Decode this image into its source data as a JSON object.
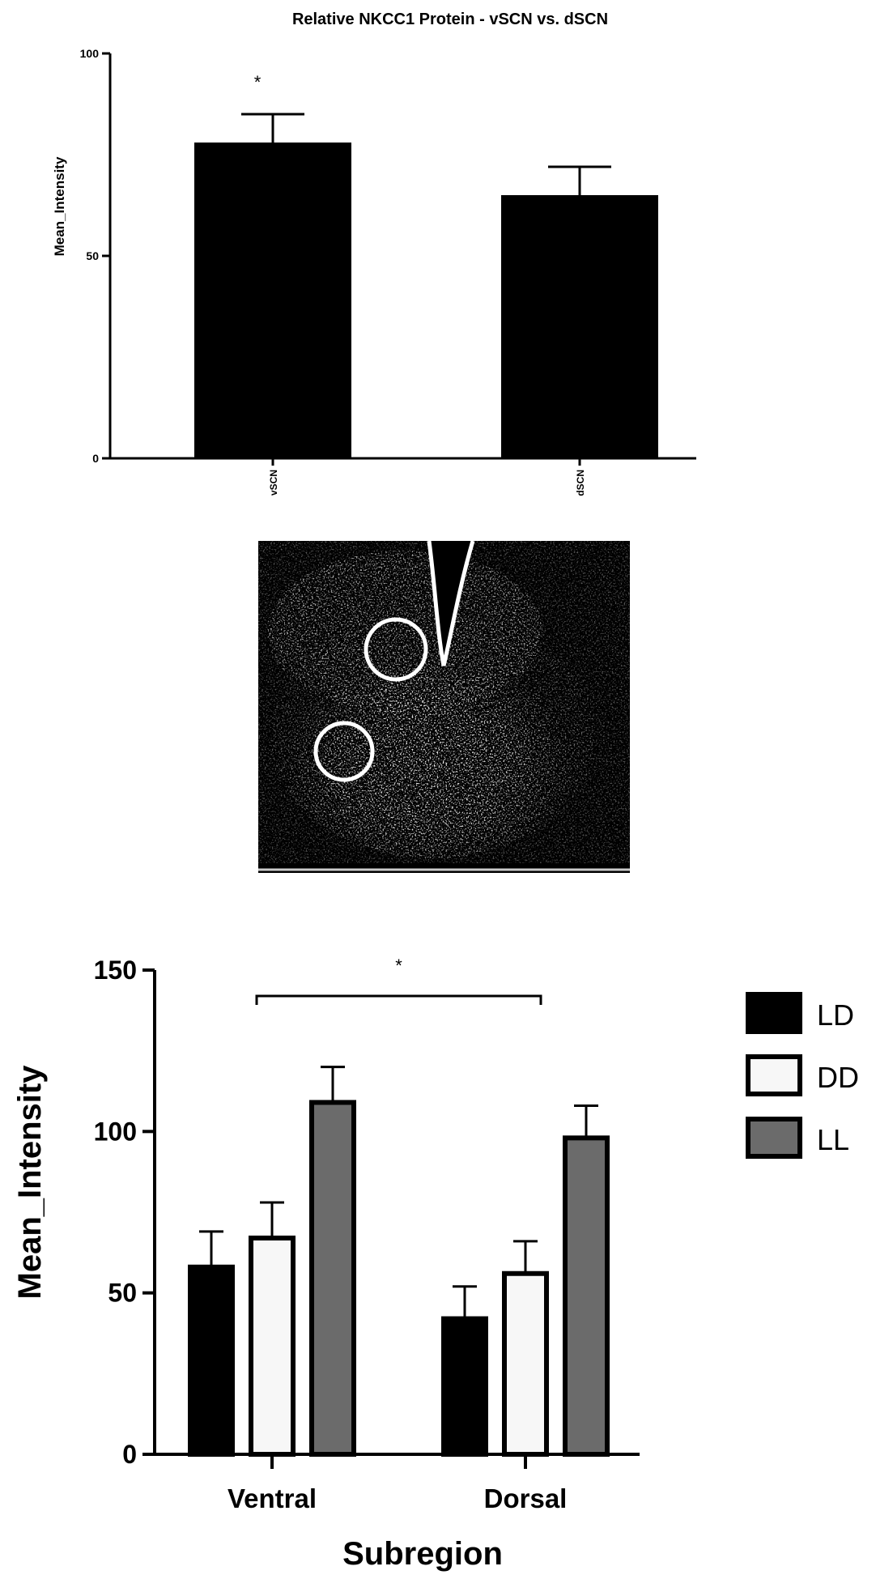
{
  "chart_data": [
    {
      "type": "bar",
      "title": "Relative NKCC1 Protein - vSCN vs. dSCN",
      "xlabel": "",
      "ylabel": "Mean_Intensity",
      "ylim": [
        0,
        100
      ],
      "yticks": [
        "0",
        "50",
        "100"
      ],
      "categories": [
        "vSCN",
        "dSCN"
      ],
      "values": [
        78,
        65
      ],
      "errors": [
        7,
        7
      ],
      "significance": "*",
      "bar_color": "#000000"
    },
    {
      "type": "bar",
      "title": "",
      "xlabel": "Subregion",
      "ylabel": "Mean_Intensity",
      "ylim": [
        0,
        150
      ],
      "yticks": [
        "0",
        "50",
        "100",
        "150"
      ],
      "categories": [
        "Ventral",
        "Dorsal"
      ],
      "series": [
        {
          "name": "LD",
          "values": [
            58,
            42
          ],
          "errors": [
            11,
            10
          ],
          "color": "#000000"
        },
        {
          "name": "DD",
          "values": [
            67,
            56
          ],
          "errors": [
            11,
            10
          ],
          "color": "#f7f7f7"
        },
        {
          "name": "LL",
          "values": [
            109,
            98
          ],
          "errors": [
            11,
            10
          ],
          "color": "#6b6b6b"
        }
      ],
      "significance": "*",
      "legend_position": "right"
    }
  ],
  "micrograph": {
    "description_icon": "fluorescence-micrograph",
    "roi_markers": 2
  }
}
